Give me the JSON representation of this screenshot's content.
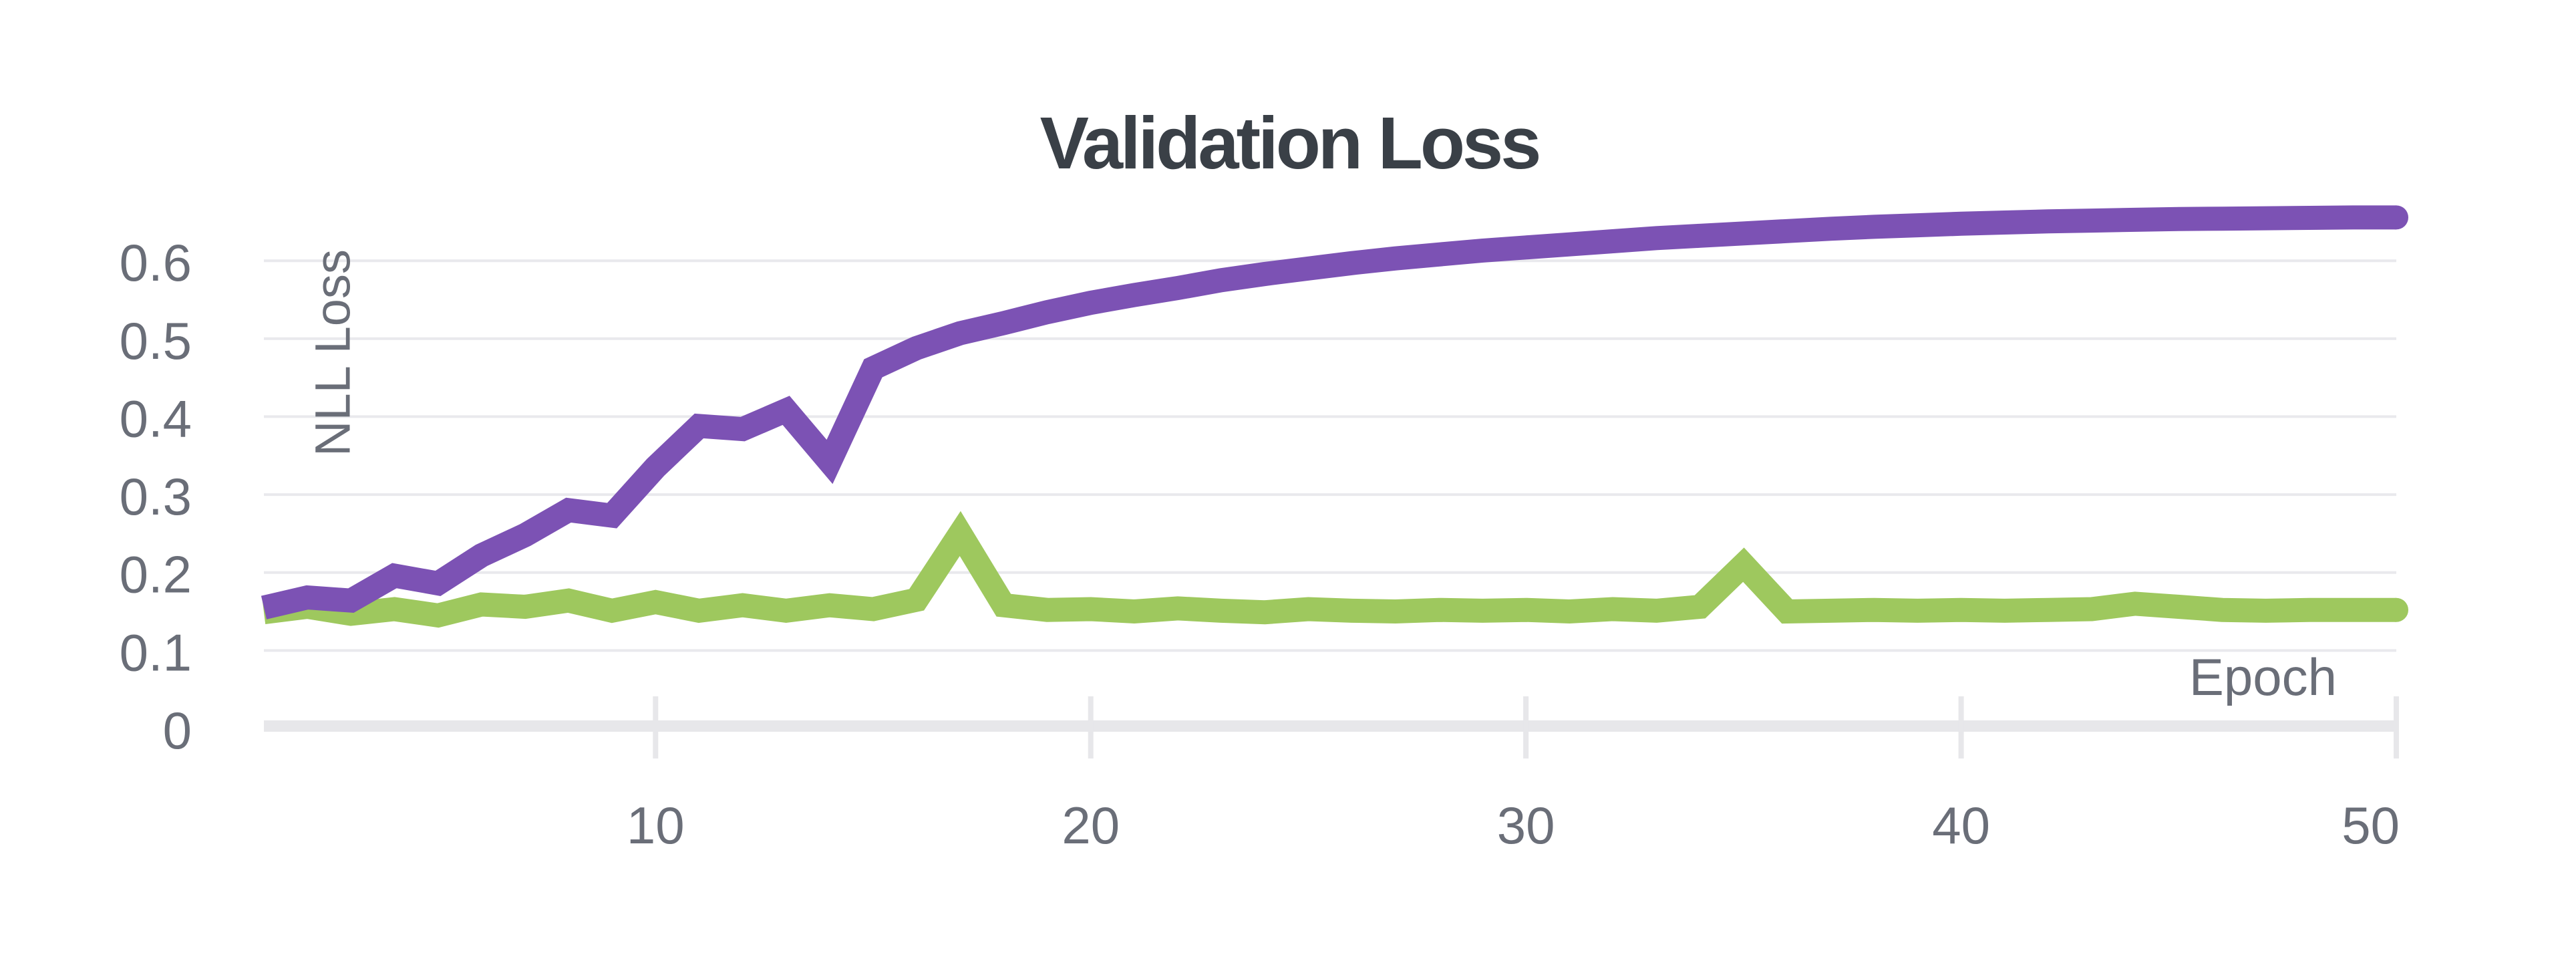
{
  "page": {
    "background_color": "#ffffff"
  },
  "chart_data": {
    "type": "line",
    "title": "Validation Loss",
    "xlabel": "Epoch",
    "ylabel": "NLL Loss",
    "grid": "horizontal",
    "legend_position": "none",
    "xlim": [
      1,
      50
    ],
    "ylim": [
      0,
      0.66
    ],
    "x_ticks": [
      10,
      20,
      30,
      40,
      50
    ],
    "y_ticks": [
      0,
      0.1,
      0.2,
      0.3,
      0.4,
      0.5,
      0.6
    ],
    "y_tick_labels": [
      "0",
      "0.1",
      "0.2",
      "0.3",
      "0.4",
      "0.5",
      "0.6"
    ],
    "x": [
      1,
      2,
      3,
      4,
      5,
      6,
      7,
      8,
      9,
      10,
      11,
      12,
      13,
      14,
      15,
      16,
      17,
      18,
      19,
      20,
      21,
      22,
      23,
      24,
      25,
      26,
      27,
      28,
      29,
      30,
      31,
      32,
      33,
      34,
      35,
      36,
      37,
      38,
      39,
      40,
      41,
      42,
      43,
      44,
      45,
      46,
      47,
      48,
      49,
      50
    ],
    "series": [
      {
        "name": "green-line",
        "color": "#9EC85E",
        "values": [
          0.149,
          0.156,
          0.147,
          0.153,
          0.145,
          0.159,
          0.156,
          0.164,
          0.151,
          0.162,
          0.151,
          0.158,
          0.151,
          0.158,
          0.153,
          0.165,
          0.25,
          0.158,
          0.152,
          0.153,
          0.15,
          0.154,
          0.151,
          0.149,
          0.153,
          0.151,
          0.15,
          0.152,
          0.151,
          0.152,
          0.15,
          0.153,
          0.151,
          0.156,
          0.21,
          0.15,
          0.151,
          0.152,
          0.151,
          0.152,
          0.151,
          0.152,
          0.153,
          0.16,
          0.156,
          0.152,
          0.151,
          0.152,
          0.152,
          0.152
        ]
      },
      {
        "name": "purple-line",
        "color": "#7C52B4",
        "values": [
          0.155,
          0.168,
          0.164,
          0.196,
          0.186,
          0.222,
          0.248,
          0.28,
          0.273,
          0.335,
          0.388,
          0.384,
          0.408,
          0.342,
          0.462,
          0.488,
          0.507,
          0.52,
          0.534,
          0.546,
          0.556,
          0.565,
          0.575,
          0.583,
          0.59,
          0.597,
          0.603,
          0.608,
          0.613,
          0.617,
          0.621,
          0.625,
          0.629,
          0.632,
          0.635,
          0.638,
          0.641,
          0.6435,
          0.6455,
          0.6475,
          0.649,
          0.6505,
          0.6515,
          0.6525,
          0.6535,
          0.654,
          0.6545,
          0.655,
          0.6555,
          0.6555
        ]
      }
    ],
    "colors": {
      "gridline": "#E9E9ED",
      "axis_band": "#E7E7EA",
      "tick_mark": "#E7E7EA",
      "tick_label": "#6A6E78",
      "axis_label": "#6A6E78",
      "title": "#3A4047"
    }
  }
}
